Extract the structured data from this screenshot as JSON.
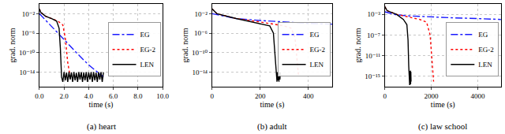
{
  "chart_data": [
    {
      "type": "line",
      "title": "(a) heart",
      "x_label": "time (s)",
      "y_label": "grad. norm",
      "log": "y",
      "grid": true,
      "legend": "right",
      "xlim": [
        0,
        10
      ],
      "xticks": [
        {
          "value": 0,
          "label": "0.0"
        },
        {
          "value": 2,
          "label": "2.0"
        },
        {
          "value": 4,
          "label": "4.0"
        },
        {
          "value": 6,
          "label": "6.0"
        },
        {
          "value": 8,
          "label": "8.0"
        },
        {
          "value": 10,
          "label": "10.0"
        }
      ],
      "ylim": [
        1e-17,
        1
      ],
      "yticks": [
        {
          "value": 0.01,
          "label": "10⁻²"
        },
        {
          "value": 1e-06,
          "label": "10⁻⁶"
        },
        {
          "value": 1e-10,
          "label": "10⁻¹⁰"
        },
        {
          "value": 1e-14,
          "label": "10⁻¹⁴"
        }
      ],
      "series": [
        {
          "name": "EG",
          "color": "#1a1aff",
          "line_style": "dashdot",
          "x": [
            0,
            0.5,
            1,
            2,
            3,
            4,
            5.2
          ],
          "values": [
            0.01,
            0.0005,
            2e-05,
            5e-08,
            1e-10,
            3e-13,
            1e-15
          ]
        },
        {
          "name": "EG-2",
          "color": "#ff0000",
          "line_style": "dot",
          "x": [
            0,
            0.1,
            0.5,
            1,
            1.5,
            1.9,
            2.1,
            2.3,
            2.5
          ],
          "values": [
            0.1,
            0.02,
            0.003,
            0.001,
            0.0003,
            5e-05,
            1e-07,
            1e-12,
            1e-15
          ]
        },
        {
          "name": "LEN",
          "color": "#000000",
          "line_style": "solid",
          "x": [
            0,
            0.1,
            0.5,
            1,
            1.4,
            1.6,
            1.7,
            1.75,
            1.8,
            1.9,
            2.0,
            2.1,
            2.2,
            2.3,
            2.4,
            2.5,
            2.6,
            2.7,
            2.8,
            2.9,
            3.0,
            3.1,
            3.2,
            3.3,
            3.4,
            3.5,
            3.6,
            3.7,
            3.8,
            3.9,
            4.0,
            4.1,
            4.2,
            4.3,
            4.4,
            4.5,
            4.6,
            4.7,
            4.8,
            4.9,
            5.0,
            5.1,
            5.2
          ],
          "values": [
            0.1,
            0.02,
            0.003,
            0.001,
            0.0003,
            1e-05,
            1e-09,
            1e-13,
            1e-15,
            1e-16,
            1e-14,
            2e-16,
            8e-15,
            1e-16,
            1e-14,
            3e-16,
            9e-15,
            1e-16,
            1e-14,
            2e-16,
            7e-15,
            1e-16,
            1e-14,
            3e-16,
            1e-14,
            1e-16,
            8e-15,
            2e-16,
            1e-14,
            1e-16,
            9e-15,
            3e-16,
            1e-14,
            1e-16,
            1e-14,
            2e-16,
            8e-15,
            1e-16,
            1e-14,
            3e-16,
            1e-14,
            1e-16,
            9e-15
          ]
        }
      ]
    },
    {
      "type": "line",
      "title": "(b) adult",
      "x_label": "time (s)",
      "y_label": "grad. norm",
      "log": "y",
      "grid": true,
      "legend": "right",
      "xlim": [
        0,
        500
      ],
      "xticks": [
        0,
        200,
        400
      ],
      "ylim": [
        1e-17,
        1
      ],
      "yticks": [
        {
          "value": 0.01,
          "label": "10⁻²"
        },
        {
          "value": 1e-06,
          "label": "10⁻⁶"
        },
        {
          "value": 1e-10,
          "label": "10⁻¹⁰"
        },
        {
          "value": 1e-14,
          "label": "10⁻¹⁴"
        }
      ],
      "series": [
        {
          "name": "EG",
          "color": "#1a1aff",
          "line_style": "dashdot",
          "x": [
            0,
            50,
            100,
            200,
            300,
            400,
            500
          ],
          "values": [
            0.01,
            0.003,
            0.001,
            0.0004,
            0.0002,
            0.0001,
            7e-05
          ]
        },
        {
          "name": "EG-2",
          "color": "#ff0000",
          "line_style": "dot",
          "x": [
            0,
            20,
            100,
            200,
            300,
            330,
            345,
            355,
            360
          ],
          "values": [
            0.1,
            0.01,
            0.001,
            0.0002,
            3e-05,
            1e-05,
            1e-07,
            1e-12,
            1e-15
          ]
        },
        {
          "name": "LEN",
          "color": "#000000",
          "line_style": "solid",
          "x": [
            0,
            20,
            100,
            200,
            240,
            255,
            262,
            268,
            270,
            272,
            274,
            276,
            278,
            280,
            282,
            284
          ],
          "values": [
            0.1,
            0.01,
            0.001,
            0.0001,
            3e-05,
            1e-06,
            1e-11,
            1e-15,
            1e-16,
            1e-14,
            2e-16,
            9e-15,
            1e-16,
            1e-14,
            3e-16,
            8e-15
          ]
        }
      ]
    },
    {
      "type": "line",
      "title": "(c) law school",
      "x_label": "time (s)",
      "y_label": "grad. norm",
      "log": "y",
      "grid": true,
      "legend": "right",
      "xlim": [
        0,
        5000
      ],
      "xticks": [
        0,
        2000,
        4000
      ],
      "ylim": [
        1e-17,
        0.1
      ],
      "yticks": [
        {
          "value": 0.001,
          "label": "10⁻³"
        },
        {
          "value": 1e-07,
          "label": "10⁻⁷"
        },
        {
          "value": 1e-11,
          "label": "10⁻¹¹"
        },
        {
          "value": 1e-15,
          "label": "10⁻¹⁵"
        }
      ],
      "series": [
        {
          "name": "EG",
          "color": "#1a1aff",
          "line_style": "dashdot",
          "x": [
            0,
            500,
            1000,
            2000,
            3000,
            4000,
            5000
          ],
          "values": [
            0.003,
            0.0008,
            0.0005,
            0.0003,
            0.0002,
            0.00015,
            0.0001
          ]
        },
        {
          "name": "EG-2",
          "color": "#ff0000",
          "line_style": "dot",
          "x": [
            0,
            100,
            500,
            1000,
            1500,
            1800,
            1950,
            2050,
            2100
          ],
          "values": [
            0.03,
            0.005,
            0.001,
            0.0003,
            0.0001,
            3e-05,
            1e-07,
            1e-13,
            1e-16
          ]
        },
        {
          "name": "LEN",
          "color": "#000000",
          "line_style": "solid",
          "x": [
            0,
            100,
            500,
            800,
            950,
            1000,
            1030,
            1050,
            1060,
            1070,
            1080,
            1090,
            1100,
            1110,
            1120,
            1130
          ],
          "values": [
            0.03,
            0.005,
            0.001,
            0.0001,
            1e-05,
            1e-08,
            1e-13,
            1e-16,
            1e-14,
            2e-17,
            9e-15,
            1e-16,
            1e-14,
            3e-17,
            8e-15,
            1e-16
          ]
        }
      ]
    }
  ]
}
